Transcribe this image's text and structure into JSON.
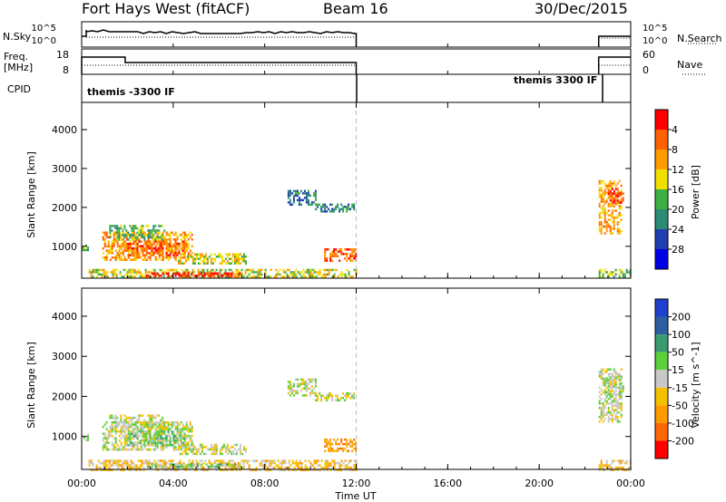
{
  "header": {
    "title": "Fort Hays West (fitACF)",
    "beam": "Beam 16",
    "date": "30/Dec/2015"
  },
  "nsky_panel": {
    "label": "N.Sky",
    "right_label": "N.Search",
    "yticks_left": [
      "10^5",
      "10^0"
    ],
    "yticks_right": [
      "10^5",
      "10^0"
    ]
  },
  "freq_panel": {
    "label_line1": "Freq.",
    "label_line2": "[MHz]",
    "right_label": "Nave",
    "yticks_left": [
      "18",
      "8"
    ],
    "yticks_right": [
      "60",
      "0"
    ]
  },
  "cpid_panel": {
    "label": "CPID",
    "mode_left": "themis -3300 IF",
    "mode_right": "themis 3300 IF"
  },
  "chart_data": [
    {
      "type": "heatmap",
      "name": "power",
      "ylabel": "Slant Range [km]",
      "xlim": [
        0,
        24
      ],
      "ylim": [
        180,
        4700
      ],
      "yticks": [
        1000,
        2000,
        3000,
        4000
      ],
      "colorbar": {
        "label": "Power [dB]",
        "ticks": [
          "4",
          "8",
          "12",
          "16",
          "20",
          "24",
          "28"
        ],
        "colors": [
          "#0000e6",
          "#2040b0",
          "#2e8b73",
          "#3cb043",
          "#f0e000",
          "#ff9a00",
          "#ff6000",
          "#ff0000"
        ]
      },
      "regions": [
        {
          "t0": 0.0,
          "t1": 0.25,
          "r0": 880,
          "r1": 1050,
          "level": 3
        },
        {
          "t0": 0.9,
          "t1": 4.8,
          "r0": 650,
          "r1": 1380,
          "level": 5
        },
        {
          "t0": 1.2,
          "t1": 3.6,
          "r0": 1150,
          "r1": 1550,
          "level": 3
        },
        {
          "t0": 2.0,
          "t1": 4.5,
          "r0": 800,
          "r1": 1150,
          "level": 6
        },
        {
          "t0": 4.2,
          "t1": 7.2,
          "r0": 560,
          "r1": 820,
          "level": 4
        },
        {
          "t0": 0.3,
          "t1": 12.0,
          "r0": 190,
          "r1": 420,
          "level": 4
        },
        {
          "t0": 2.8,
          "t1": 7.0,
          "r0": 220,
          "r1": 330,
          "level": 7
        },
        {
          "t0": 10.6,
          "t1": 12.0,
          "r0": 620,
          "r1": 950,
          "level": 6
        },
        {
          "t0": 9.0,
          "t1": 10.2,
          "r0": 2050,
          "r1": 2450,
          "level": 2
        },
        {
          "t0": 10.2,
          "t1": 11.9,
          "r0": 1900,
          "r1": 2100,
          "level": 2
        },
        {
          "t0": 22.6,
          "t1": 23.6,
          "r0": 1350,
          "r1": 2700,
          "level": 5
        },
        {
          "t0": 23.0,
          "t1": 23.7,
          "r0": 2150,
          "r1": 2500,
          "level": 6
        },
        {
          "t0": 22.6,
          "t1": 24.0,
          "r0": 190,
          "r1": 420,
          "level": 3
        }
      ]
    },
    {
      "type": "heatmap",
      "name": "velocity",
      "ylabel": "Slant Range [km]",
      "xlabel": "Time UT",
      "xlim": [
        0,
        24
      ],
      "ylim": [
        180,
        4700
      ],
      "yticks": [
        1000,
        2000,
        3000,
        4000
      ],
      "xticks": [
        "00:00",
        "04:00",
        "08:00",
        "12:00",
        "16:00",
        "20:00",
        "00:00"
      ],
      "colorbar": {
        "label": "Velocity [m s^-1]",
        "ticks": [
          "200",
          "100",
          "50",
          "15",
          "-15",
          "-50",
          "-100",
          "-200"
        ],
        "colors": [
          "#1f3fcf",
          "#2d5fa0",
          "#3a9a70",
          "#5ccf3a",
          "#c8c8c8",
          "#f4c000",
          "#ff9a00",
          "#ff6600",
          "#ff0000"
        ]
      },
      "regions": [
        {
          "t0": 0.0,
          "t1": 0.25,
          "r0": 880,
          "r1": 1050,
          "level": 4
        },
        {
          "t0": 0.9,
          "t1": 4.8,
          "r0": 650,
          "r1": 1380,
          "level": 4
        },
        {
          "t0": 1.2,
          "t1": 3.6,
          "r0": 1150,
          "r1": 1550,
          "level": 4
        },
        {
          "t0": 2.0,
          "t1": 4.5,
          "r0": 800,
          "r1": 1150,
          "level": 3
        },
        {
          "t0": 4.2,
          "t1": 7.2,
          "r0": 560,
          "r1": 820,
          "level": 4
        },
        {
          "t0": 0.3,
          "t1": 12.0,
          "r0": 190,
          "r1": 420,
          "level": 5
        },
        {
          "t0": 2.8,
          "t1": 7.0,
          "r0": 220,
          "r1": 330,
          "level": 3
        },
        {
          "t0": 10.6,
          "t1": 12.0,
          "r0": 620,
          "r1": 950,
          "level": 6
        },
        {
          "t0": 9.0,
          "t1": 10.2,
          "r0": 2050,
          "r1": 2450,
          "level": 4
        },
        {
          "t0": 10.2,
          "t1": 11.9,
          "r0": 1900,
          "r1": 2100,
          "level": 4
        },
        {
          "t0": 22.6,
          "t1": 23.6,
          "r0": 1350,
          "r1": 2700,
          "level": 4
        },
        {
          "t0": 23.0,
          "t1": 23.7,
          "r0": 2150,
          "r1": 2500,
          "level": 4
        },
        {
          "t0": 22.6,
          "t1": 24.0,
          "r0": 190,
          "r1": 420,
          "level": 5
        }
      ]
    }
  ]
}
